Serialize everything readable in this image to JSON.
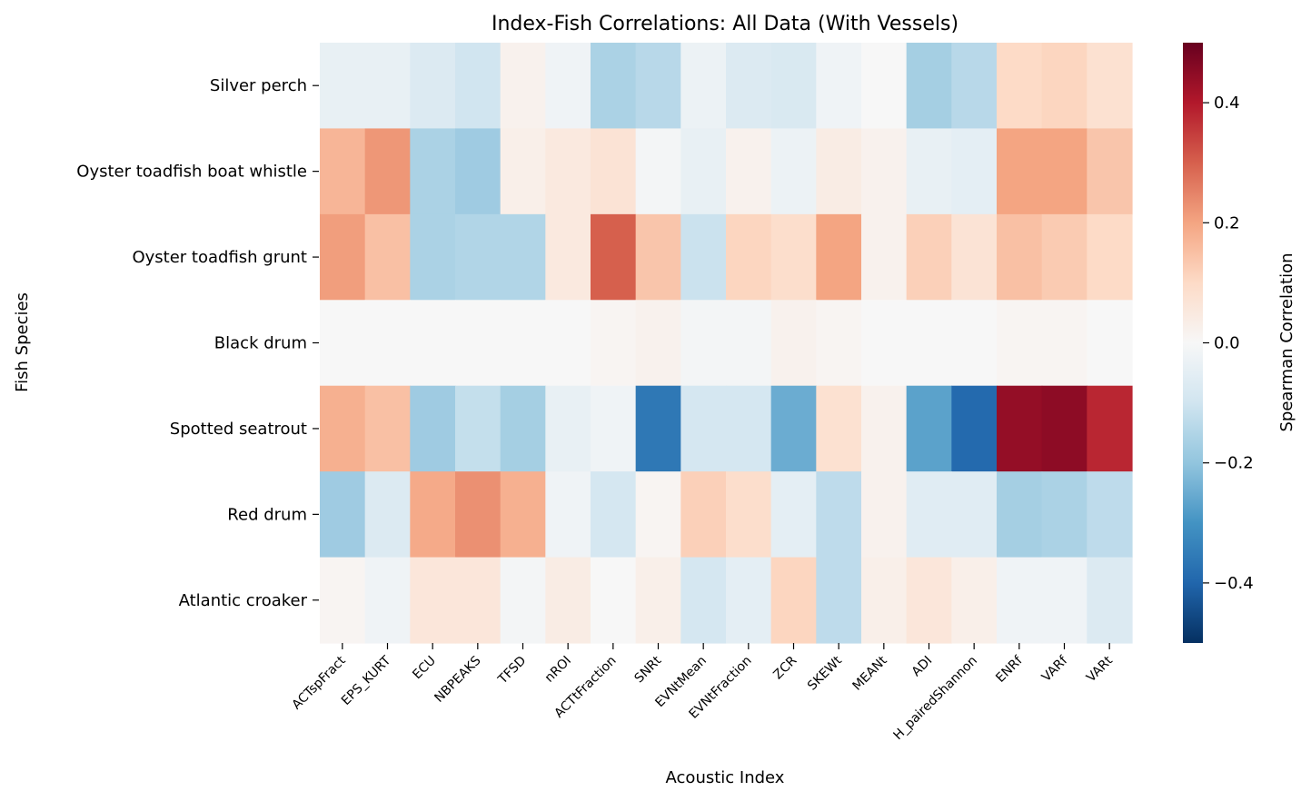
{
  "chart_data": {
    "type": "heatmap",
    "title": "Index-Fish Correlations: All Data (With Vessels)",
    "xlabel": "Acoustic Index",
    "ylabel": "Fish Species",
    "colorbar_label": "Spearman Correlation",
    "colorscale": "RdBu_r",
    "vmin": -0.5,
    "vmax": 0.5,
    "colorbar_ticks": [
      0.4,
      0.2,
      0.0,
      -0.2,
      -0.4
    ],
    "colorbar_tick_labels": [
      "0.4",
      "0.2",
      "0.0",
      "−0.2",
      "−0.4"
    ],
    "x_categories": [
      "ACTspFract",
      "EPS_KURT",
      "ECU",
      "NBPEAKS",
      "TFSD",
      "nROI",
      "ACTtFraction",
      "SNRt",
      "EVNtMean",
      "EVNtFraction",
      "ZCR",
      "SKEWt",
      "MEANt",
      "ADI",
      "H_pairedShannon",
      "ENRf",
      "VARf",
      "VARt"
    ],
    "y_categories": [
      "Silver perch",
      "Oyster toadfish boat whistle",
      "Oyster toadfish grunt",
      "Black drum",
      "Spotted seatrout",
      "Red drum",
      "Atlantic croaker"
    ],
    "values": [
      [
        -0.04,
        -0.04,
        -0.07,
        -0.1,
        0.02,
        -0.02,
        -0.16,
        -0.14,
        -0.03,
        -0.07,
        -0.08,
        -0.02,
        0.0,
        -0.17,
        -0.14,
        0.1,
        0.11,
        0.08
      ],
      [
        0.17,
        0.22,
        -0.16,
        -0.18,
        0.03,
        0.05,
        0.07,
        -0.01,
        -0.04,
        0.02,
        -0.03,
        0.04,
        0.02,
        -0.04,
        -0.05,
        0.2,
        0.2,
        0.14
      ],
      [
        0.21,
        0.15,
        -0.16,
        -0.15,
        -0.15,
        0.05,
        0.3,
        0.14,
        -0.11,
        0.11,
        0.09,
        0.2,
        0.02,
        0.12,
        0.07,
        0.15,
        0.13,
        0.1
      ],
      [
        0.0,
        0.0,
        0.0,
        0.0,
        0.0,
        0.0,
        0.01,
        0.02,
        -0.01,
        -0.01,
        0.02,
        0.01,
        0.0,
        0.0,
        0.0,
        0.01,
        0.01,
        0.0
      ],
      [
        0.18,
        0.15,
        -0.18,
        -0.12,
        -0.17,
        -0.04,
        -0.02,
        -0.36,
        -0.09,
        -0.09,
        -0.25,
        0.08,
        0.02,
        -0.27,
        -0.39,
        0.44,
        0.45,
        0.38
      ],
      [
        -0.18,
        -0.07,
        0.19,
        0.23,
        0.18,
        -0.02,
        -0.09,
        0.01,
        0.12,
        0.09,
        -0.05,
        -0.13,
        0.02,
        -0.06,
        -0.06,
        -0.17,
        -0.16,
        -0.13
      ],
      [
        0.01,
        -0.02,
        0.06,
        0.06,
        -0.01,
        0.04,
        0.0,
        0.03,
        -0.09,
        -0.05,
        0.11,
        -0.13,
        0.03,
        0.06,
        0.03,
        -0.02,
        -0.02,
        -0.07
      ]
    ]
  }
}
